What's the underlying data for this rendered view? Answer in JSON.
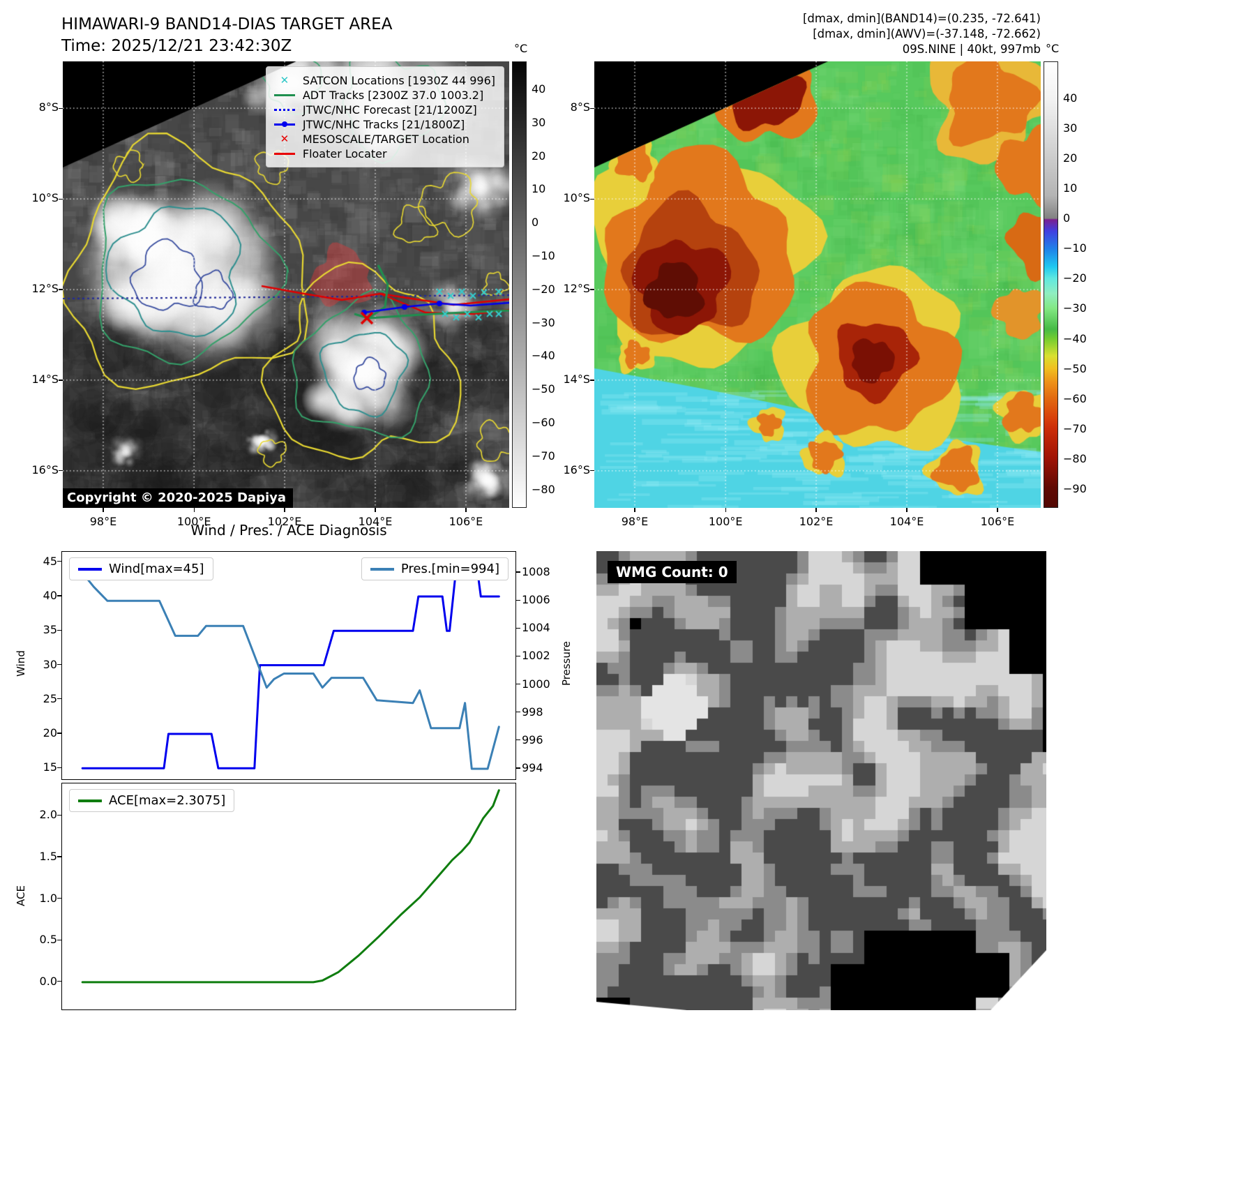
{
  "header": {
    "title_line1": "HIMAWARI-9 BAND14-DIAS TARGET AREA",
    "title_line2": "Time: 2025/12/21 23:42:30Z",
    "info_line1": "[dmax, dmin](BAND14)=(0.235, -72.641)",
    "info_line2": "[dmax, dmin](AWV)=(-37.148, -72.662)",
    "info_line3": "09S.NINE | 40kt, 997mb"
  },
  "band14_panel": {
    "legend": [
      {
        "label": "SATCON Locations [1930Z 44 996]",
        "marker": "x",
        "color": "#2ec7c7"
      },
      {
        "label": "ADT Tracks [2300Z 37.0 1003.2]",
        "marker": "line",
        "color": "#1f8f4f"
      },
      {
        "label": "JTWC/NHC Forecast [21/1200Z]",
        "marker": "dotted",
        "color": "#0000ee"
      },
      {
        "label": "JTWC/NHC Tracks [21/1800Z]",
        "marker": "line-dot",
        "color": "#0000ee"
      },
      {
        "label": "MESOSCALE/TARGET Location",
        "marker": "x",
        "color": "#e80000"
      },
      {
        "label": "Floater Locater",
        "marker": "line",
        "color": "#e80000"
      }
    ],
    "copyright": "Copyright © 2020-2025 Dapiya",
    "lat_ticks": [
      "8°S",
      "10°S",
      "12°S",
      "14°S",
      "16°S"
    ],
    "lon_ticks": [
      "98°E",
      "100°E",
      "102°E",
      "104°E",
      "106°E"
    ],
    "colorbar_unit": "°C",
    "colorbar_ticks": [
      "40",
      "30",
      "20",
      "10",
      "0",
      "−10",
      "−20",
      "−30",
      "−40",
      "−50",
      "−60",
      "−70",
      "−80"
    ]
  },
  "awv_panel": {
    "lat_ticks": [
      "8°S",
      "10°S",
      "12°S",
      "14°S",
      "16°S"
    ],
    "lon_ticks": [
      "98°E",
      "100°E",
      "102°E",
      "104°E",
      "106°E"
    ],
    "colorbar_unit": "°C",
    "colorbar_ticks": [
      "40",
      "30",
      "20",
      "10",
      "0",
      "−10",
      "−20",
      "−30",
      "−40",
      "−50",
      "−60",
      "−70",
      "−80",
      "−90"
    ]
  },
  "wmg_panel": {
    "count_label": "WMG Count: 0"
  },
  "chart_data": [
    {
      "type": "line",
      "title": "Wind / Pres. / ACE Diagnosis",
      "ylabel": "Wind",
      "y2label": "Pressure",
      "ylim": [
        13.5,
        46.5
      ],
      "y2lim": [
        993.3,
        1009.5
      ],
      "yticks": [
        "15",
        "20",
        "25",
        "30",
        "35",
        "40",
        "45"
      ],
      "y2ticks": [
        "994",
        "996",
        "998",
        "1000",
        "1002",
        "1004",
        "1006",
        "1008"
      ],
      "series": [
        {
          "name": "Wind[max=45]",
          "color": "#0000ee",
          "axis": "y",
          "points": [
            [
              0.045,
              15
            ],
            [
              0.225,
              15
            ],
            [
              0.235,
              20
            ],
            [
              0.33,
              20
            ],
            [
              0.345,
              15
            ],
            [
              0.425,
              15
            ],
            [
              0.437,
              30
            ],
            [
              0.578,
              30
            ],
            [
              0.6,
              35
            ],
            [
              0.775,
              35
            ],
            [
              0.787,
              40
            ],
            [
              0.84,
              40
            ],
            [
              0.85,
              35
            ],
            [
              0.856,
              35
            ],
            [
              0.872,
              45
            ],
            [
              0.915,
              45
            ],
            [
              0.925,
              40
            ],
            [
              0.965,
              40
            ]
          ]
        },
        {
          "name": "Pres.[min=994]",
          "color": "#3b80b5",
          "axis": "y2",
          "points": [
            [
              0.045,
              1008
            ],
            [
              0.07,
              1007
            ],
            [
              0.1,
              1006
            ],
            [
              0.215,
              1006
            ],
            [
              0.25,
              1003.5
            ],
            [
              0.3,
              1003.5
            ],
            [
              0.318,
              1004.2
            ],
            [
              0.4,
              1004.2
            ],
            [
              0.432,
              1001.5
            ],
            [
              0.452,
              999.8
            ],
            [
              0.468,
              1000.4
            ],
            [
              0.49,
              1000.8
            ],
            [
              0.555,
              1000.8
            ],
            [
              0.575,
              999.8
            ],
            [
              0.595,
              1000.5
            ],
            [
              0.665,
              1000.5
            ],
            [
              0.695,
              998.9
            ],
            [
              0.775,
              998.7
            ],
            [
              0.79,
              999.6
            ],
            [
              0.815,
              996.9
            ],
            [
              0.878,
              996.9
            ],
            [
              0.89,
              998.7
            ],
            [
              0.905,
              994
            ],
            [
              0.94,
              994
            ],
            [
              0.965,
              997
            ]
          ]
        }
      ]
    },
    {
      "type": "line",
      "ylabel": "ACE",
      "ylim": [
        -0.32,
        2.39
      ],
      "yticks": [
        "0.0",
        "0.5",
        "1.0",
        "1.5",
        "2.0"
      ],
      "series": [
        {
          "name": "ACE[max=2.3075]",
          "color": "#0f7d0f",
          "axis": "y",
          "points": [
            [
              0.045,
              0
            ],
            [
              0.555,
              0
            ],
            [
              0.575,
              0.02
            ],
            [
              0.61,
              0.12
            ],
            [
              0.655,
              0.32
            ],
            [
              0.7,
              0.55
            ],
            [
              0.75,
              0.82
            ],
            [
              0.79,
              1.02
            ],
            [
              0.83,
              1.27
            ],
            [
              0.862,
              1.47
            ],
            [
              0.882,
              1.57
            ],
            [
              0.9,
              1.68
            ],
            [
              0.93,
              1.97
            ],
            [
              0.952,
              2.12
            ],
            [
              0.965,
              2.3075
            ]
          ]
        }
      ]
    }
  ]
}
